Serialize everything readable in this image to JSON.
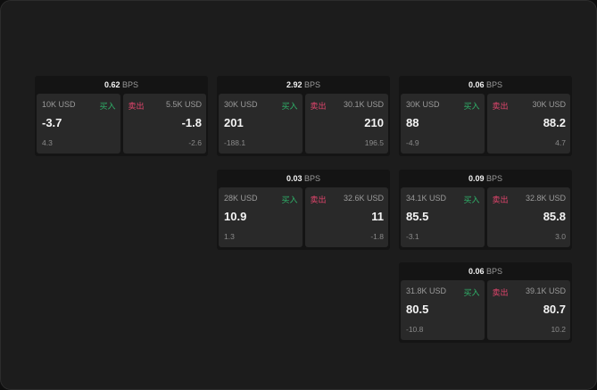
{
  "unit": "BPS",
  "buy_label": "买入",
  "sell_label": "卖出",
  "colors": {
    "buy": "#2fb36a",
    "sell": "#e0456c"
  },
  "panels": [
    {
      "spread": "0.62",
      "buy": {
        "size": "10K USD",
        "price": "-3.7",
        "change": "4.3"
      },
      "sell": {
        "size": "5.5K USD",
        "price": "-1.8",
        "change": "-2.6"
      }
    },
    {
      "spread": "2.92",
      "buy": {
        "size": "30K USD",
        "price": "201",
        "change": "-188.1"
      },
      "sell": {
        "size": "30.1K USD",
        "price": "210",
        "change": "196.5"
      }
    },
    {
      "spread": "0.06",
      "buy": {
        "size": "30K USD",
        "price": "88",
        "change": "-4.9"
      },
      "sell": {
        "size": "30K USD",
        "price": "88.2",
        "change": "4.7"
      }
    },
    {
      "spread": "0.03",
      "buy": {
        "size": "28K USD",
        "price": "10.9",
        "change": "1.3"
      },
      "sell": {
        "size": "32.6K USD",
        "price": "11",
        "change": "-1.8"
      }
    },
    {
      "spread": "0.09",
      "buy": {
        "size": "34.1K USD",
        "price": "85.5",
        "change": "-3.1"
      },
      "sell": {
        "size": "32.8K USD",
        "price": "85.8",
        "change": "3.0"
      }
    },
    {
      "spread": "0.06",
      "buy": {
        "size": "31.8K USD",
        "price": "80.5",
        "change": "-10.8"
      },
      "sell": {
        "size": "39.1K USD",
        "price": "80.7",
        "change": "10.2"
      }
    }
  ]
}
